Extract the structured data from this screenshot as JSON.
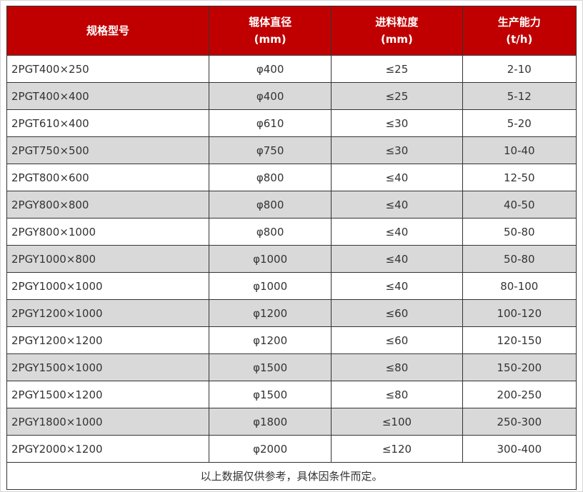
{
  "accent_color": "#c00000",
  "row_alt_color": "#d9d9d9",
  "header_text_color": "#ffffff",
  "chart_data": {
    "type": "table",
    "title": "",
    "columns": [
      {
        "label": "规格型号",
        "unit": ""
      },
      {
        "label": "辊体直径",
        "unit": "(mm)"
      },
      {
        "label": "进料粒度",
        "unit": "(mm)"
      },
      {
        "label": "生产能力",
        "unit": "(t/h)"
      }
    ],
    "rows": [
      [
        "2PGT400×250",
        "φ400",
        "≤25",
        "2-10"
      ],
      [
        "2PGT400×400",
        "φ400",
        "≤25",
        "5-12"
      ],
      [
        "2PGT610×400",
        "φ610",
        "≤30",
        "5-20"
      ],
      [
        "2PGT750×500",
        "φ750",
        "≤30",
        "10-40"
      ],
      [
        "2PGT800×600",
        "φ800",
        "≤40",
        "12-50"
      ],
      [
        "2PGY800×800",
        "φ800",
        "≤40",
        "40-50"
      ],
      [
        "2PGY800×1000",
        "φ800",
        "≤40",
        "50-80"
      ],
      [
        "2PGY1000×800",
        "φ1000",
        "≤40",
        "50-80"
      ],
      [
        "2PGY1000×1000",
        "φ1000",
        "≤40",
        "80-100"
      ],
      [
        "2PGY1200×1000",
        "φ1200",
        "≤60",
        "100-120"
      ],
      [
        "2PGY1200×1200",
        "φ1200",
        "≤60",
        "120-150"
      ],
      [
        "2PGY1500×1000",
        "φ1500",
        "≤80",
        "150-200"
      ],
      [
        "2PGY1500×1200",
        "φ1500",
        "≤80",
        "200-250"
      ],
      [
        "2PGY1800×1000",
        "φ1800",
        "≤100",
        "250-300"
      ],
      [
        "2PGY2000×1200",
        "φ2000",
        "≤120",
        "300-400"
      ]
    ],
    "footnote": "以上数据仅供参考，具体因条件而定。"
  }
}
